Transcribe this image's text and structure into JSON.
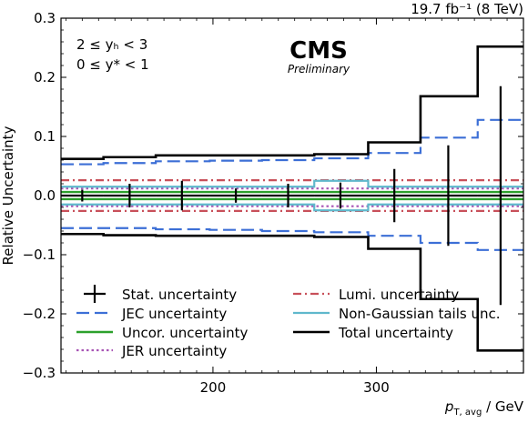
{
  "chart_data": {
    "type": "line",
    "title": "",
    "top_right_label": "19.7 fb⁻¹ (8 TeV)",
    "cms_label": "CMS",
    "preliminary_label": "Preliminary",
    "range_labels": [
      "2 ≤ yₕ < 3",
      "0 ≤ y* < 1"
    ],
    "xlabel": "p",
    "xlabel_sub": "T, avg",
    "xlabel_unit": " / GeV",
    "ylabel": "Relative Uncertainty",
    "xlim": [
      107,
      390
    ],
    "ylim": [
      -0.3,
      0.3
    ],
    "x_ticks": [
      200,
      300
    ],
    "y_ticks": [
      -0.3,
      -0.2,
      -0.1,
      0.0,
      0.1,
      0.2,
      0.3
    ],
    "y_tick_labels": [
      "−0.3",
      "−0.2",
      "−0.1",
      "0.0",
      "0.1",
      "0.2",
      "0.3"
    ],
    "bin_edges": [
      107,
      133,
      165,
      198,
      230,
      262,
      295,
      327,
      362,
      390
    ],
    "bin_centers": [
      120,
      149,
      181,
      214,
      246,
      278,
      311,
      344,
      376
    ],
    "series": [
      {
        "name": "Stat. uncertainty",
        "key": "stat",
        "color": "#000000",
        "style": "errorbar",
        "values": [
          0.01,
          0.02,
          0.025,
          0.012,
          0.02,
          0.022,
          0.045,
          0.085,
          0.185
        ]
      },
      {
        "name": "JEC uncertainty",
        "key": "jec",
        "color": "#3c6fd6",
        "style": "dashed",
        "up": [
          0.053,
          0.055,
          0.058,
          0.059,
          0.06,
          0.063,
          0.072,
          0.098,
          0.128
        ],
        "down": [
          -0.055,
          -0.055,
          -0.057,
          -0.058,
          -0.06,
          -0.062,
          -0.068,
          -0.08,
          -0.092
        ]
      },
      {
        "name": "Uncor. uncertainty",
        "key": "uncor",
        "color": "#2ca02c",
        "style": "solid",
        "up": [
          0.006,
          0.006,
          0.006,
          0.006,
          0.006,
          0.006,
          0.006,
          0.006,
          0.006
        ],
        "down": [
          -0.006,
          -0.006,
          -0.006,
          -0.006,
          -0.006,
          -0.006,
          -0.006,
          -0.006,
          -0.006
        ]
      },
      {
        "name": "JER uncertainty",
        "key": "jer",
        "color": "#a855b5",
        "style": "dotted",
        "up": [
          0.012,
          0.012,
          0.012,
          0.012,
          0.012,
          0.012,
          0.012,
          0.012,
          0.012
        ],
        "down": [
          -0.018,
          -0.018,
          -0.018,
          -0.018,
          -0.018,
          -0.018,
          -0.018,
          -0.018,
          -0.018
        ]
      },
      {
        "name": "Lumi. uncertainty",
        "key": "lumi",
        "color": "#c8505a",
        "style": "dashdot",
        "up": [
          0.026,
          0.026,
          0.026,
          0.026,
          0.026,
          0.026,
          0.026,
          0.026,
          0.026
        ],
        "down": [
          -0.026,
          -0.026,
          -0.026,
          -0.026,
          -0.026,
          -0.026,
          -0.026,
          -0.026,
          -0.026
        ]
      },
      {
        "name": "Non-Gaussian tails unc.",
        "key": "ng",
        "color": "#5fb8cc",
        "style": "solid",
        "up": [
          0.015,
          0.015,
          0.015,
          0.015,
          0.015,
          0.025,
          0.015,
          0.015,
          0.015
        ],
        "down": [
          -0.015,
          -0.015,
          -0.015,
          -0.015,
          -0.015,
          -0.025,
          -0.015,
          -0.015,
          -0.015
        ]
      },
      {
        "name": "Total uncertainty",
        "key": "total",
        "color": "#000000",
        "style": "solid",
        "up": [
          0.062,
          0.065,
          0.068,
          0.068,
          0.068,
          0.07,
          0.09,
          0.168,
          0.252
        ],
        "down": [
          -0.065,
          -0.067,
          -0.068,
          -0.068,
          -0.068,
          -0.07,
          -0.09,
          -0.175,
          -0.262
        ]
      }
    ],
    "legend_placement": "bottom"
  }
}
